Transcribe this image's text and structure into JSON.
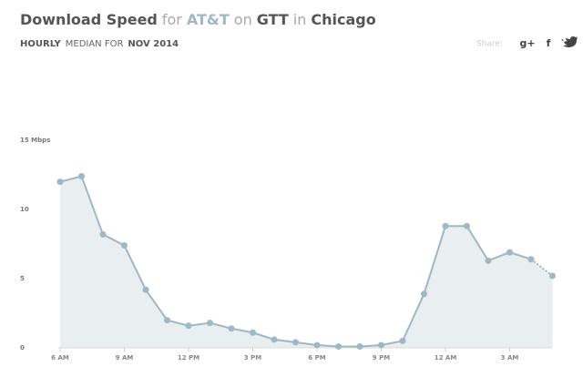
{
  "chart_data": {
    "type": "area",
    "title": [
      {
        "text": "Download Speed",
        "style": "strong"
      },
      {
        "text": "for",
        "style": "light"
      },
      {
        "text": "AT&T",
        "style": "accent"
      },
      {
        "text": "on",
        "style": "light"
      },
      {
        "text": "GTT",
        "style": "strong"
      },
      {
        "text": "in",
        "style": "light"
      },
      {
        "text": "Chicago",
        "style": "strong"
      }
    ],
    "subtitle": [
      {
        "text": "HOURLY",
        "style": "strong"
      },
      {
        "text": "MEDIAN FOR",
        "style": "normal"
      },
      {
        "text": "NOV 2014",
        "style": "strong"
      }
    ],
    "share": {
      "label": "Share:",
      "icons": [
        "g+",
        "f"
      ]
    },
    "categories": [
      "6 AM",
      null,
      null,
      "9 AM",
      null,
      null,
      "12 PM",
      null,
      null,
      "3 PM",
      null,
      null,
      "6 PM",
      null,
      null,
      "9 PM",
      null,
      null,
      "12 AM",
      null,
      null,
      "3 AM",
      null,
      null
    ],
    "values": [
      12.0,
      12.4,
      8.2,
      7.4,
      4.2,
      2.0,
      1.6,
      1.8,
      1.4,
      1.1,
      0.6,
      0.4,
      0.2,
      0.1,
      0.1,
      0.2,
      0.5,
      3.9,
      8.8,
      8.8,
      6.3,
      6.9,
      6.4,
      5.2
    ],
    "dashed_last": true,
    "color": "#9fb8c4",
    "fill": "#e9eef1",
    "ylim": [
      0,
      15
    ],
    "yticks": [
      0,
      5,
      10,
      {
        "value": 15,
        "label": "15 Mbps"
      }
    ]
  }
}
